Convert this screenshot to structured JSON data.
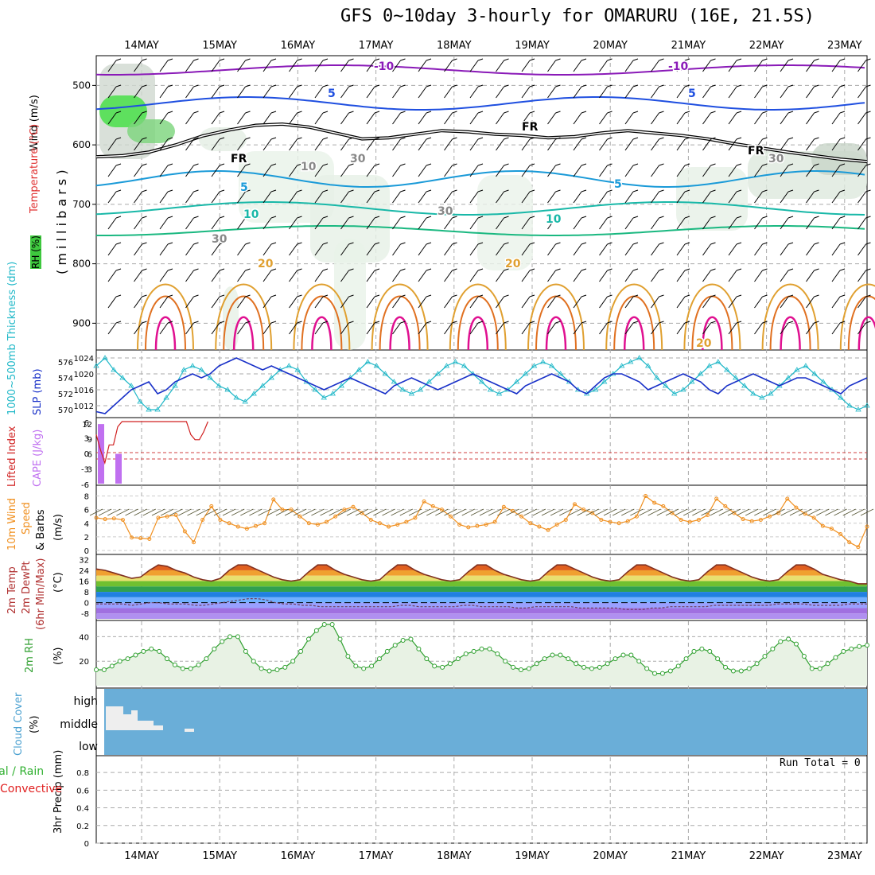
{
  "title": "GFS 0~10day 3-hourly for OMARURU (16E, 21.5S)",
  "run_total": "Run Total = 0",
  "dates": [
    "14MAY",
    "15MAY",
    "16MAY",
    "17MAY",
    "18MAY",
    "19MAY",
    "20MAY",
    "21MAY",
    "22MAY",
    "23MAY"
  ],
  "colors": {
    "temp_purple": "#8a1ab8",
    "temp_blue": "#1f4fe0",
    "temp_sky": "#1a9ad8",
    "temp_teal": "#19b8a8",
    "temp_green": "#1ab880",
    "temp_orange20": "#e0a030",
    "temp_orange": "#e07020",
    "temp_magenta": "#e01090",
    "slp": "#1830c8",
    "thick": "#20b8c8",
    "cape": "#c070f0",
    "li": "#d02020",
    "wind10": "#f09020",
    "rh2": "#30a030",
    "cloud": "#6aaed8"
  },
  "labels": {
    "upper": {
      "wind": "Wind (m/s)",
      "temp": "Temperature (°C)",
      "rh": "RH (%)",
      "mb": "( m i l l i b a r s )"
    },
    "slp": {
      "thick": "1000~500mb Thickness (dm)",
      "slp": "SLP (mb)"
    },
    "cape": {
      "li": "Lifted Index",
      "cape": "CAPE (J/kg)"
    },
    "wind": {
      "title": "10m Wind",
      "speed": "Speed",
      "barbs": "& Barbs",
      "unit": "(m/s)"
    },
    "temp": {
      "t": "2m Temp",
      "dp": "2m DewPt",
      "mm": "(6hr Min/Max)",
      "unit": "(°C)"
    },
    "rh": {
      "title": "2m RH",
      "unit": "(%)"
    },
    "cloud": {
      "title": "Cloud Cover",
      "unit": "(%)",
      "high": "high",
      "middle": "middle",
      "low": "low"
    },
    "precip": {
      "title": "3hr Precip (mm)",
      "total": "Total / Rain",
      "conv": "Convective"
    }
  },
  "chart_data": [
    {
      "type": "line",
      "name": "upper-air",
      "ylabel": "millibars",
      "yticks": [
        500,
        600,
        700,
        800,
        900
      ],
      "contour_labels": {
        "temp": [
          "-10",
          "-5",
          "FR",
          "5",
          "10",
          "20"
        ],
        "rh": [
          "10",
          "30"
        ]
      },
      "freezing_level_mb": [
        620,
        618,
        612,
        600,
        585,
        575,
        567,
        565,
        570,
        580,
        590,
        588,
        582,
        576,
        578,
        582,
        584,
        588,
        586,
        580,
        576,
        580,
        584,
        590,
        598,
        605,
        612,
        618,
        624,
        628
      ]
    },
    {
      "type": "line",
      "name": "slp-thickness",
      "yticks_thick": [
        570,
        572,
        574,
        576
      ],
      "yticks_slp": [
        1012,
        1016,
        1020,
        1024
      ],
      "slp": [
        1010.5,
        1010,
        1012,
        1014,
        1016,
        1017,
        1018,
        1015,
        1016,
        1018,
        1019,
        1020,
        1019,
        1020,
        1022,
        1023,
        1024,
        1023,
        1022,
        1021,
        1022,
        1021,
        1020,
        1019,
        1018,
        1017,
        1016,
        1017,
        1018,
        1019,
        1018,
        1017,
        1016,
        1015,
        1017,
        1018,
        1019,
        1018,
        1017,
        1016,
        1017,
        1018,
        1019,
        1020,
        1019,
        1018,
        1017,
        1016,
        1015,
        1017,
        1018,
        1019,
        1020,
        1019,
        1018,
        1016,
        1015,
        1017,
        1019,
        1020,
        1020,
        1019,
        1018,
        1016,
        1017,
        1018,
        1019,
        1020,
        1019,
        1018,
        1016,
        1015,
        1017,
        1018,
        1019,
        1020,
        1019,
        1018,
        1017,
        1018,
        1019,
        1019,
        1018,
        1017,
        1016,
        1015,
        1017,
        1018,
        1019
      ],
      "thickness": [
        575.5,
        576.5,
        575,
        574,
        573,
        571,
        570,
        570,
        571.5,
        573,
        575,
        575.5,
        575,
        574,
        573,
        572.5,
        571.5,
        571,
        572,
        573,
        574,
        575,
        575.5,
        575,
        573.5,
        572.5,
        571.5,
        572,
        573,
        574,
        575,
        576,
        575.5,
        574.5,
        573.5,
        572.5,
        572,
        572.5,
        573.5,
        574.5,
        575.5,
        576,
        575.5,
        574.5,
        573.5,
        572.5,
        572,
        572.5,
        573.5,
        574.5,
        575.5,
        576,
        575.5,
        574.5,
        573.5,
        572.5,
        572,
        572.5,
        573.5,
        574.5,
        575.5,
        576,
        576.5,
        575.5,
        574,
        573,
        572,
        572.5,
        573.5,
        574.5,
        575.5,
        576,
        575,
        574,
        573,
        572,
        571.5,
        572,
        573,
        574,
        575,
        575.5,
        574.5,
        573.5,
        572.5,
        571.5,
        570.5,
        570,
        570.5
      ]
    },
    {
      "type": "bar",
      "name": "cape-li",
      "yticks_li": [
        "6",
        "3",
        "0",
        "-3",
        "-6"
      ],
      "yticks_cape": [
        3,
        6,
        9,
        12
      ],
      "cape": [
        12,
        0,
        6,
        0,
        0,
        0,
        0,
        0,
        0
      ],
      "lifted_index": [
        3.5,
        0.5,
        -2,
        1.5,
        1.5,
        5,
        6,
        6,
        6,
        6,
        6,
        6,
        6,
        6,
        6,
        6,
        6,
        6,
        6,
        6,
        6,
        6,
        3.5,
        2.5,
        2.5,
        4,
        6
      ]
    },
    {
      "type": "line",
      "name": "10m-wind",
      "yticks": [
        0,
        2,
        4,
        6,
        8
      ],
      "speed": [
        4.8,
        4.6,
        4.7,
        4.5,
        1.9,
        1.8,
        1.7,
        4.8,
        5.0,
        5.2,
        2.8,
        1.2,
        4.5,
        6.5,
        4.5,
        4.0,
        3.5,
        3.2,
        3.6,
        4.0,
        7.5,
        6.0,
        6.0,
        5.0,
        4.0,
        3.8,
        4.2,
        5.0,
        6.0,
        6.4,
        5.5,
        4.5,
        4.0,
        3.5,
        3.8,
        4.2,
        4.8,
        7.2,
        6.5,
        6.0,
        5.0,
        3.8,
        3.4,
        3.6,
        3.8,
        4.2,
        6.4,
        5.8,
        5.0,
        4.0,
        3.5,
        3.0,
        3.8,
        4.5,
        6.8,
        6.0,
        5.5,
        4.5,
        4.2,
        4.0,
        4.3,
        5.0,
        8.0,
        7.0,
        6.5,
        5.5,
        4.5,
        4.2,
        4.5,
        5.2,
        7.6,
        6.5,
        5.5,
        4.6,
        4.3,
        4.5,
        5.0,
        5.5,
        7.6,
        6.3,
        5.4,
        4.8,
        3.6,
        3.2,
        2.4,
        1.2,
        0.5,
        3.5
      ]
    },
    {
      "type": "area",
      "name": "2m-temp",
      "yticks": [
        -8,
        0,
        8,
        16,
        24,
        32
      ],
      "temp": [
        25,
        24,
        22,
        20,
        18,
        19,
        24,
        28,
        27,
        24,
        22,
        19,
        17,
        16,
        18,
        24,
        28,
        28,
        25,
        22,
        19,
        17,
        16,
        17,
        23,
        28,
        28,
        24,
        21,
        19,
        17,
        16,
        17,
        23,
        28,
        28,
        24,
        21,
        19,
        17,
        16,
        17,
        23,
        28,
        28,
        24,
        21,
        19,
        17,
        16,
        17,
        23,
        28,
        28,
        25,
        22,
        19,
        17,
        16,
        17,
        23,
        28,
        28,
        25,
        22,
        19,
        17,
        16,
        17,
        23,
        28,
        28,
        25,
        22,
        19,
        17,
        16,
        17,
        23,
        28,
        28,
        25,
        21,
        19,
        17,
        16,
        14,
        14
      ],
      "dewpoint": [
        -1,
        -1,
        -1,
        -1,
        -2,
        -1,
        0,
        0,
        -1,
        -1,
        -1,
        -2,
        -2,
        -1,
        0,
        1,
        2,
        3,
        3,
        2,
        0,
        -1,
        -1,
        -2,
        -2,
        -3,
        -3,
        -3,
        -3,
        -3,
        -3,
        -3,
        -3,
        -3,
        -2,
        -2,
        -3,
        -3,
        -3,
        -3,
        -3,
        -2,
        -2,
        -3,
        -3,
        -3,
        -3,
        -4,
        -4,
        -3,
        -3,
        -3,
        -3,
        -3,
        -4,
        -4,
        -4,
        -4,
        -4,
        -5,
        -5,
        -5,
        -4,
        -4,
        -3,
        -3,
        -3,
        -3,
        -3,
        -2,
        -2,
        -2,
        -2,
        -2,
        -2,
        -2,
        -1,
        -1,
        -1,
        -1,
        -2,
        -2,
        -2,
        -2,
        -1,
        -1,
        -1
      ]
    },
    {
      "type": "area",
      "name": "2m-rh",
      "yticks": [
        20,
        40
      ],
      "rh": [
        13,
        13,
        16,
        20,
        22,
        25,
        28,
        30,
        28,
        22,
        17,
        14,
        14,
        17,
        22,
        30,
        36,
        40,
        40,
        28,
        20,
        14,
        12,
        13,
        15,
        20,
        28,
        38,
        45,
        50,
        50,
        38,
        24,
        16,
        14,
        16,
        22,
        28,
        33,
        37,
        38,
        30,
        22,
        16,
        15,
        18,
        22,
        26,
        28,
        30,
        30,
        26,
        20,
        15,
        13,
        14,
        18,
        22,
        25,
        25,
        22,
        18,
        15,
        14,
        15,
        18,
        22,
        25,
        25,
        20,
        14,
        10,
        10,
        12,
        16,
        22,
        28,
        30,
        28,
        22,
        15,
        12,
        12,
        14,
        18,
        24,
        30,
        36,
        38,
        34,
        24,
        14,
        14,
        18,
        23,
        28,
        30,
        32,
        33
      ]
    },
    {
      "type": "heatmap",
      "name": "cloud-cover",
      "levels": [
        "high",
        "middle",
        "low"
      ],
      "middle_cover_pct": [
        20,
        15,
        10,
        8,
        5,
        5,
        0,
        0,
        0,
        0
      ]
    },
    {
      "type": "bar",
      "name": "3hr-precip",
      "yticks": [
        0,
        0.2,
        0.4,
        0.6,
        0.8
      ],
      "total": 0,
      "values": []
    }
  ]
}
